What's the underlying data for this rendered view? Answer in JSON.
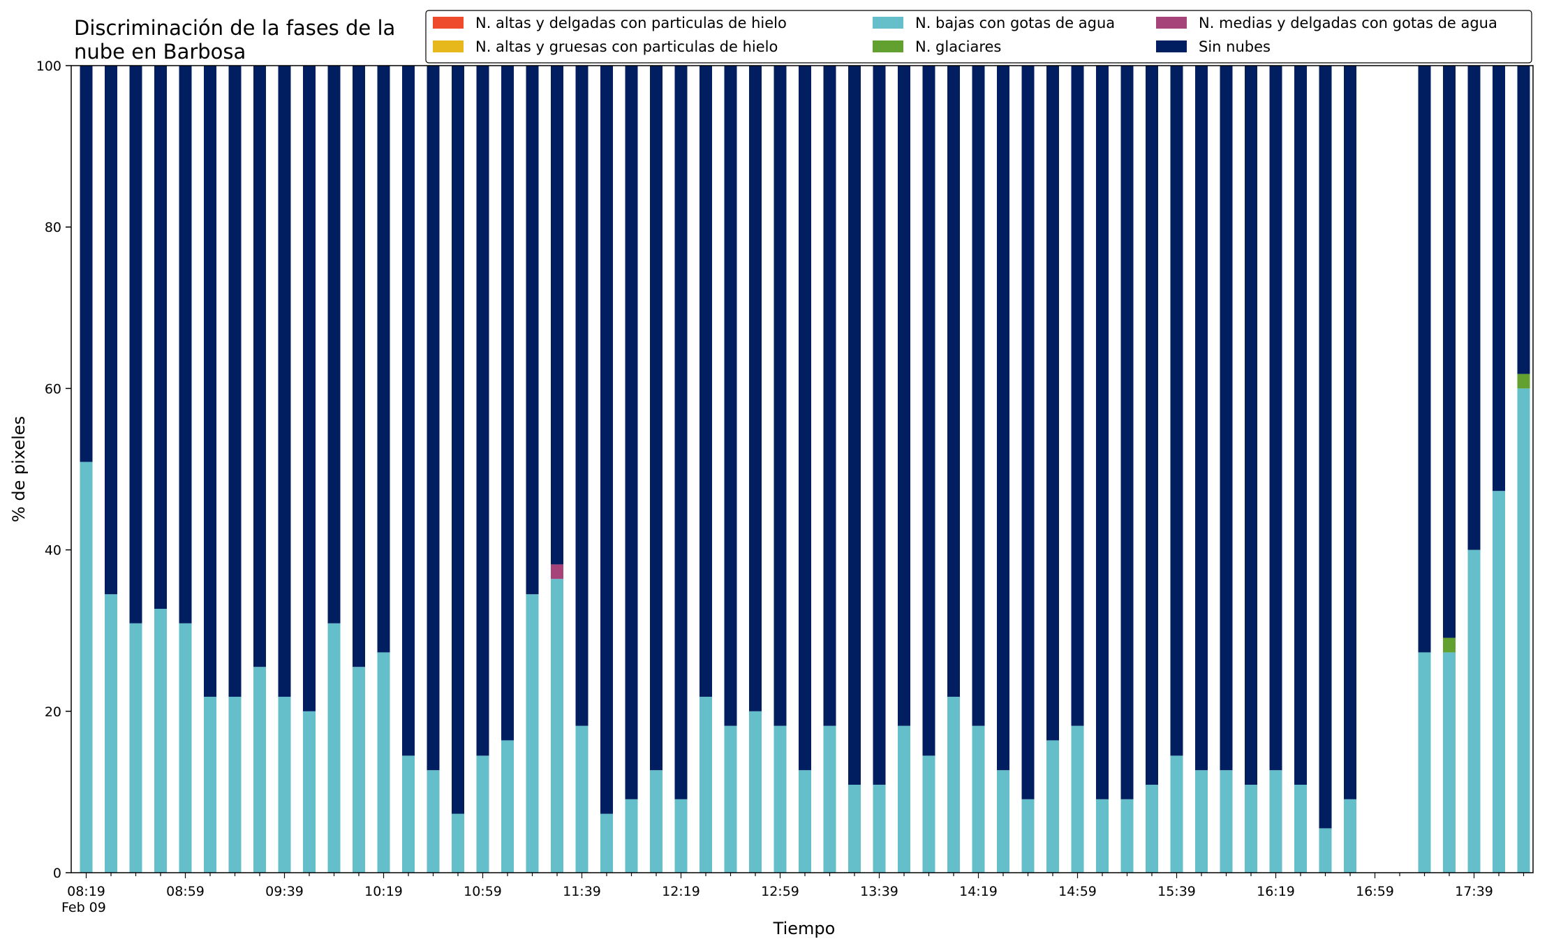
{
  "chart_data": {
    "type": "bar",
    "stacked": true,
    "title_lines": [
      "Discriminación de la fases de la",
      "nube en Barbosa"
    ],
    "xlabel": "Tiempo",
    "ylabel": "% de pixeles",
    "ylim": [
      0,
      100
    ],
    "yticks": [
      0,
      20,
      40,
      60,
      80,
      100
    ],
    "x_time_start": "08:19",
    "x_step_minutes": 10,
    "x_tick_labels": [
      "08:19",
      "08:59",
      "09:39",
      "10:19",
      "10:59",
      "11:39",
      "12:19",
      "12:59",
      "13:39",
      "14:19",
      "14:59",
      "15:39",
      "16:19",
      "16:59",
      "17:39"
    ],
    "x_sub_label": "Feb 09",
    "legend_position": "top-right",
    "grid": false,
    "series": [
      {
        "name": "N. altas y delgadas con particulas de hielo",
        "color": "#ee4a2c",
        "values": [
          0,
          0,
          0,
          0,
          0,
          0,
          0,
          0,
          0,
          0,
          0,
          0,
          0,
          0,
          0,
          0,
          0,
          0,
          0,
          0,
          0,
          0,
          0,
          0,
          0,
          0,
          0,
          0,
          0,
          0,
          0,
          0,
          0,
          0,
          0,
          0,
          0,
          0,
          0,
          0,
          0,
          0,
          0,
          0,
          0,
          0,
          0,
          0,
          0,
          0,
          0,
          0,
          0,
          0,
          0,
          0,
          0,
          0,
          0
        ]
      },
      {
        "name": "N. altas y gruesas con particulas de hielo",
        "color": "#e6b81b",
        "values": [
          0,
          0,
          0,
          0,
          0,
          0,
          0,
          0,
          0,
          0,
          0,
          0,
          0,
          0,
          0,
          0,
          0,
          0,
          0,
          0,
          0,
          0,
          0,
          0,
          0,
          0,
          0,
          0,
          0,
          0,
          0,
          0,
          0,
          0,
          0,
          0,
          0,
          0,
          0,
          0,
          0,
          0,
          0,
          0,
          0,
          0,
          0,
          0,
          0,
          0,
          0,
          0,
          0,
          0,
          0,
          0,
          0,
          0,
          0
        ]
      },
      {
        "name": "N. bajas con gotas de agua",
        "color": "#65bfcb",
        "values": [
          50.9,
          34.5,
          30.9,
          32.7,
          30.9,
          21.8,
          21.8,
          25.5,
          21.8,
          20.0,
          30.9,
          25.5,
          27.3,
          14.5,
          12.7,
          7.3,
          14.5,
          16.4,
          34.5,
          36.4,
          18.2,
          7.3,
          9.1,
          12.7,
          9.1,
          21.8,
          18.2,
          20.0,
          18.2,
          12.7,
          18.2,
          10.9,
          10.9,
          18.2,
          14.5,
          21.8,
          18.2,
          12.7,
          9.1,
          16.4,
          18.2,
          9.1,
          9.1,
          10.9,
          14.5,
          12.7,
          12.7,
          10.9,
          12.7,
          10.9,
          5.5,
          9.1,
          null,
          null,
          27.3,
          27.3,
          40.0,
          47.3,
          60.0
        ]
      },
      {
        "name": "N. glaciares",
        "color": "#62a12f",
        "values": [
          0,
          0,
          0,
          0,
          0,
          0,
          0,
          0,
          0,
          0,
          0,
          0,
          0,
          0,
          0,
          0,
          0,
          0,
          0,
          0,
          0,
          0,
          0,
          0,
          0,
          0,
          0,
          0,
          0,
          0,
          0,
          0,
          0,
          0,
          0,
          0,
          0,
          0,
          0,
          0,
          0,
          0,
          0,
          0,
          0,
          0,
          0,
          0,
          0,
          0,
          0,
          0,
          null,
          null,
          0,
          1.8,
          0,
          0,
          1.8
        ]
      },
      {
        "name": "N. medias y delgadas con gotas de agua",
        "color": "#a64378",
        "values": [
          0,
          0,
          0,
          0,
          0,
          0,
          0,
          0,
          0,
          0,
          0,
          0,
          0,
          0,
          0,
          0,
          0,
          0,
          0,
          1.8,
          0,
          0,
          0,
          0,
          0,
          0,
          0,
          0,
          0,
          0,
          0,
          0,
          0,
          0,
          0,
          0,
          0,
          0,
          0,
          0,
          0,
          0,
          0,
          0,
          0,
          0,
          0,
          0,
          0,
          0,
          0,
          0,
          null,
          null,
          0,
          0,
          0,
          0,
          0
        ]
      },
      {
        "name": "Sin nubes",
        "color": "#001e60",
        "values": [
          49.1,
          65.5,
          69.1,
          67.3,
          69.1,
          78.2,
          78.2,
          74.5,
          78.2,
          80.0,
          69.1,
          74.5,
          72.7,
          85.5,
          87.3,
          92.7,
          85.5,
          83.6,
          65.5,
          61.8,
          81.8,
          92.7,
          90.9,
          87.3,
          90.9,
          78.2,
          81.8,
          80.0,
          81.8,
          87.3,
          81.8,
          89.1,
          89.1,
          81.8,
          85.5,
          78.2,
          81.8,
          87.3,
          90.9,
          83.6,
          81.8,
          90.9,
          90.9,
          89.1,
          85.5,
          87.3,
          87.3,
          89.1,
          87.3,
          89.1,
          94.5,
          90.9,
          null,
          null,
          72.7,
          70.9,
          60.0,
          52.7,
          38.2
        ]
      }
    ]
  },
  "colors": {
    "axis": "#000000",
    "background": "#ffffff"
  }
}
